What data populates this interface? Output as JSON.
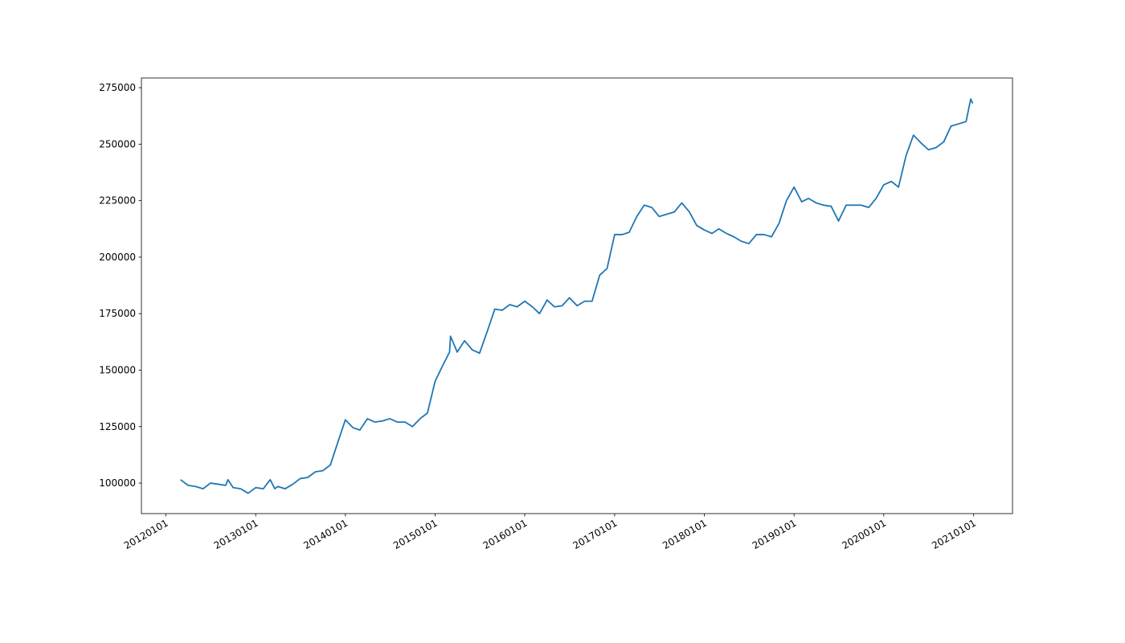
{
  "chart_data": {
    "type": "line",
    "color": "#1f77b4",
    "x": [
      "2012-03-01",
      "2012-04-01",
      "2012-05-01",
      "2012-06-01",
      "2012-07-01",
      "2012-08-01",
      "2012-09-01",
      "2012-09-10",
      "2012-10-01",
      "2012-11-01",
      "2012-12-01",
      "2013-01-01",
      "2013-02-01",
      "2013-03-01",
      "2013-03-20",
      "2013-04-01",
      "2013-05-01",
      "2013-06-01",
      "2013-07-01",
      "2013-08-01",
      "2013-09-01",
      "2013-10-01",
      "2013-11-01",
      "2013-12-01",
      "2014-01-01",
      "2014-02-01",
      "2014-03-01",
      "2014-04-01",
      "2014-05-01",
      "2014-06-01",
      "2014-07-01",
      "2014-08-01",
      "2014-09-01",
      "2014-10-01",
      "2014-11-01",
      "2014-12-01",
      "2015-01-01",
      "2015-02-01",
      "2015-03-01",
      "2015-03-05",
      "2015-04-01",
      "2015-05-01",
      "2015-06-01",
      "2015-07-01",
      "2015-08-01",
      "2015-09-01",
      "2015-10-01",
      "2015-11-01",
      "2015-12-01",
      "2016-01-01",
      "2016-02-01",
      "2016-03-01",
      "2016-04-01",
      "2016-05-01",
      "2016-06-01",
      "2016-07-01",
      "2016-08-01",
      "2016-09-01",
      "2016-10-01",
      "2016-11-01",
      "2016-12-01",
      "2017-01-01",
      "2017-02-01",
      "2017-03-01",
      "2017-04-01",
      "2017-05-01",
      "2017-06-01",
      "2017-07-01",
      "2017-08-01",
      "2017-09-01",
      "2017-10-01",
      "2017-11-01",
      "2017-12-01",
      "2018-01-01",
      "2018-02-01",
      "2018-03-01",
      "2018-04-01",
      "2018-05-01",
      "2018-06-01",
      "2018-07-01",
      "2018-08-01",
      "2018-09-01",
      "2018-10-01",
      "2018-11-01",
      "2018-12-01",
      "2019-01-01",
      "2019-02-01",
      "2019-03-01",
      "2019-04-01",
      "2019-05-01",
      "2019-06-01",
      "2019-07-01",
      "2019-08-01",
      "2019-09-01",
      "2019-10-01",
      "2019-11-01",
      "2019-12-01",
      "2020-01-01",
      "2020-02-01",
      "2020-03-01",
      "2020-04-01",
      "2020-05-01",
      "2020-06-01",
      "2020-07-01",
      "2020-08-01",
      "2020-09-01",
      "2020-10-01",
      "2020-11-01",
      "2020-12-01",
      "2020-12-20",
      "2020-12-28"
    ],
    "values": [
      101500,
      99000,
      98500,
      97500,
      100000,
      99500,
      99000,
      101500,
      98000,
      97500,
      95500,
      98000,
      97500,
      101500,
      97500,
      98500,
      97500,
      99500,
      102000,
      102500,
      105000,
      105500,
      108000,
      118000,
      128000,
      124500,
      123500,
      128500,
      127000,
      127500,
      128500,
      127000,
      127000,
      125000,
      128500,
      131000,
      145000,
      152000,
      158000,
      165000,
      158000,
      163000,
      159000,
      157500,
      167000,
      177000,
      176500,
      179000,
      178000,
      180500,
      178000,
      175000,
      181000,
      178000,
      178500,
      182000,
      178500,
      180500,
      180500,
      192000,
      195000,
      210000,
      210000,
      211000,
      218000,
      223000,
      222000,
      218000,
      219000,
      220000,
      224000,
      220000,
      214000,
      212000,
      210500,
      212500,
      210500,
      209000,
      207000,
      206000,
      210000,
      210000,
      209000,
      215000,
      225000,
      231000,
      224500,
      226000,
      224000,
      223000,
      222500,
      216000,
      223000,
      223000,
      223000,
      222000,
      226000,
      232000,
      233500,
      231000,
      245000,
      254000,
      250500,
      247500,
      248500,
      251000,
      258000,
      259000,
      260000,
      270000,
      268000
    ],
    "xlim": [
      "2011-09-24",
      "2021-06-08"
    ],
    "xticks": [
      {
        "value": "2012-01-01",
        "label": "20120101"
      },
      {
        "value": "2013-01-01",
        "label": "20130101"
      },
      {
        "value": "2014-01-01",
        "label": "20140101"
      },
      {
        "value": "2015-01-01",
        "label": "20150101"
      },
      {
        "value": "2016-01-01",
        "label": "20160101"
      },
      {
        "value": "2017-01-01",
        "label": "20170101"
      },
      {
        "value": "2018-01-01",
        "label": "20180101"
      },
      {
        "value": "2019-01-01",
        "label": "20190101"
      },
      {
        "value": "2020-01-01",
        "label": "20200101"
      },
      {
        "value": "2021-01-01",
        "label": "20210101"
      }
    ],
    "ylim": [
      86500,
      279300
    ],
    "yticks": [
      100000,
      125000,
      150000,
      175000,
      200000,
      225000,
      250000,
      275000
    ]
  }
}
